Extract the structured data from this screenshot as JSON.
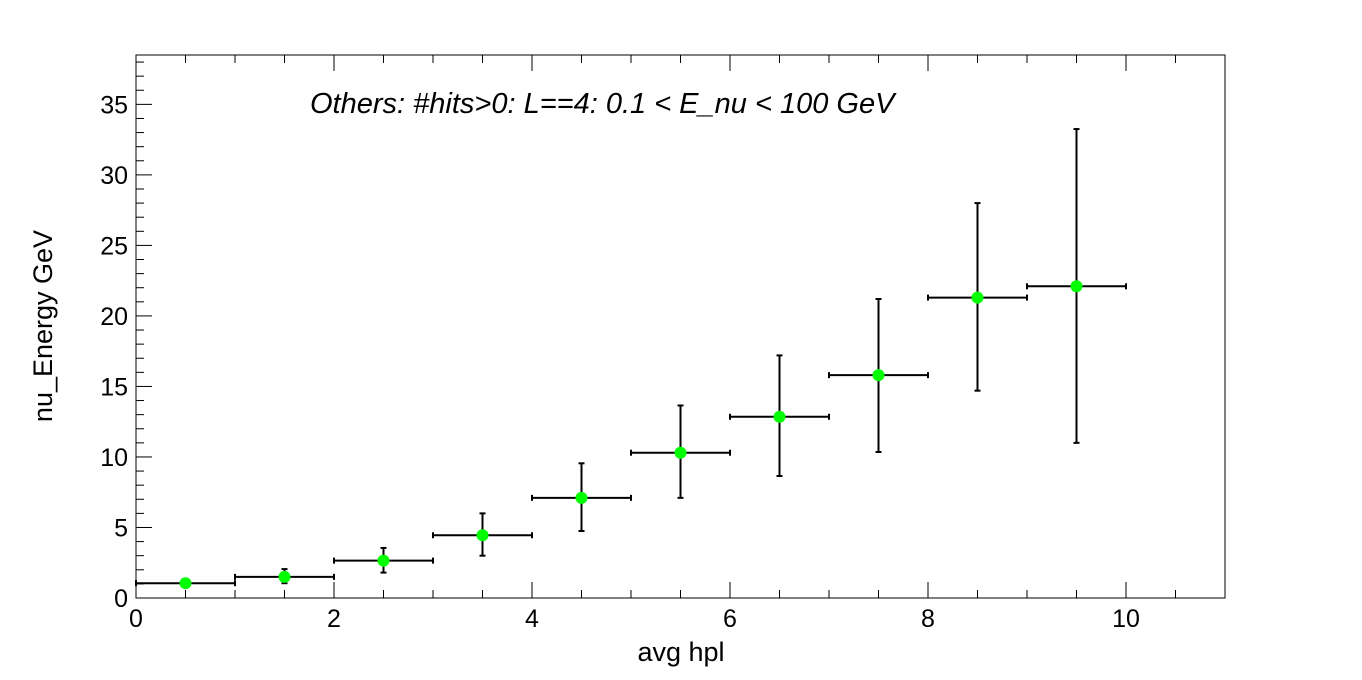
{
  "chart_data": {
    "type": "scatter",
    "title": "Others: #hits>0: L==4: 0.1 < E_nu < 100 GeV",
    "xlabel": "avg hpl",
    "ylabel": "nu_Energy GeV",
    "xlim": [
      0,
      11
    ],
    "ylim": [
      0,
      38.5
    ],
    "x_ticks": [
      0,
      2,
      4,
      6,
      8,
      10
    ],
    "y_ticks": [
      0,
      5,
      10,
      15,
      20,
      25,
      30,
      35
    ],
    "grid": false,
    "marker_color": "#00ff00",
    "series": [
      {
        "x": [
          0.5,
          1.5,
          2.5,
          3.5,
          4.5,
          5.5,
          6.5,
          7.5,
          8.5,
          9.5
        ],
        "x_err": [
          0.5,
          0.5,
          0.5,
          0.5,
          0.5,
          0.5,
          0.5,
          0.5,
          0.5,
          0.5
        ],
        "y": [
          1.05,
          1.5,
          2.65,
          4.45,
          7.1,
          10.3,
          12.85,
          15.8,
          21.3,
          22.1
        ],
        "y_err_low": [
          0.05,
          0.45,
          0.85,
          1.45,
          2.35,
          3.2,
          4.2,
          5.45,
          6.6,
          11.1
        ],
        "y_err_high": [
          0.05,
          0.55,
          0.9,
          1.55,
          2.45,
          3.35,
          4.35,
          5.4,
          6.7,
          11.15
        ]
      }
    ]
  }
}
